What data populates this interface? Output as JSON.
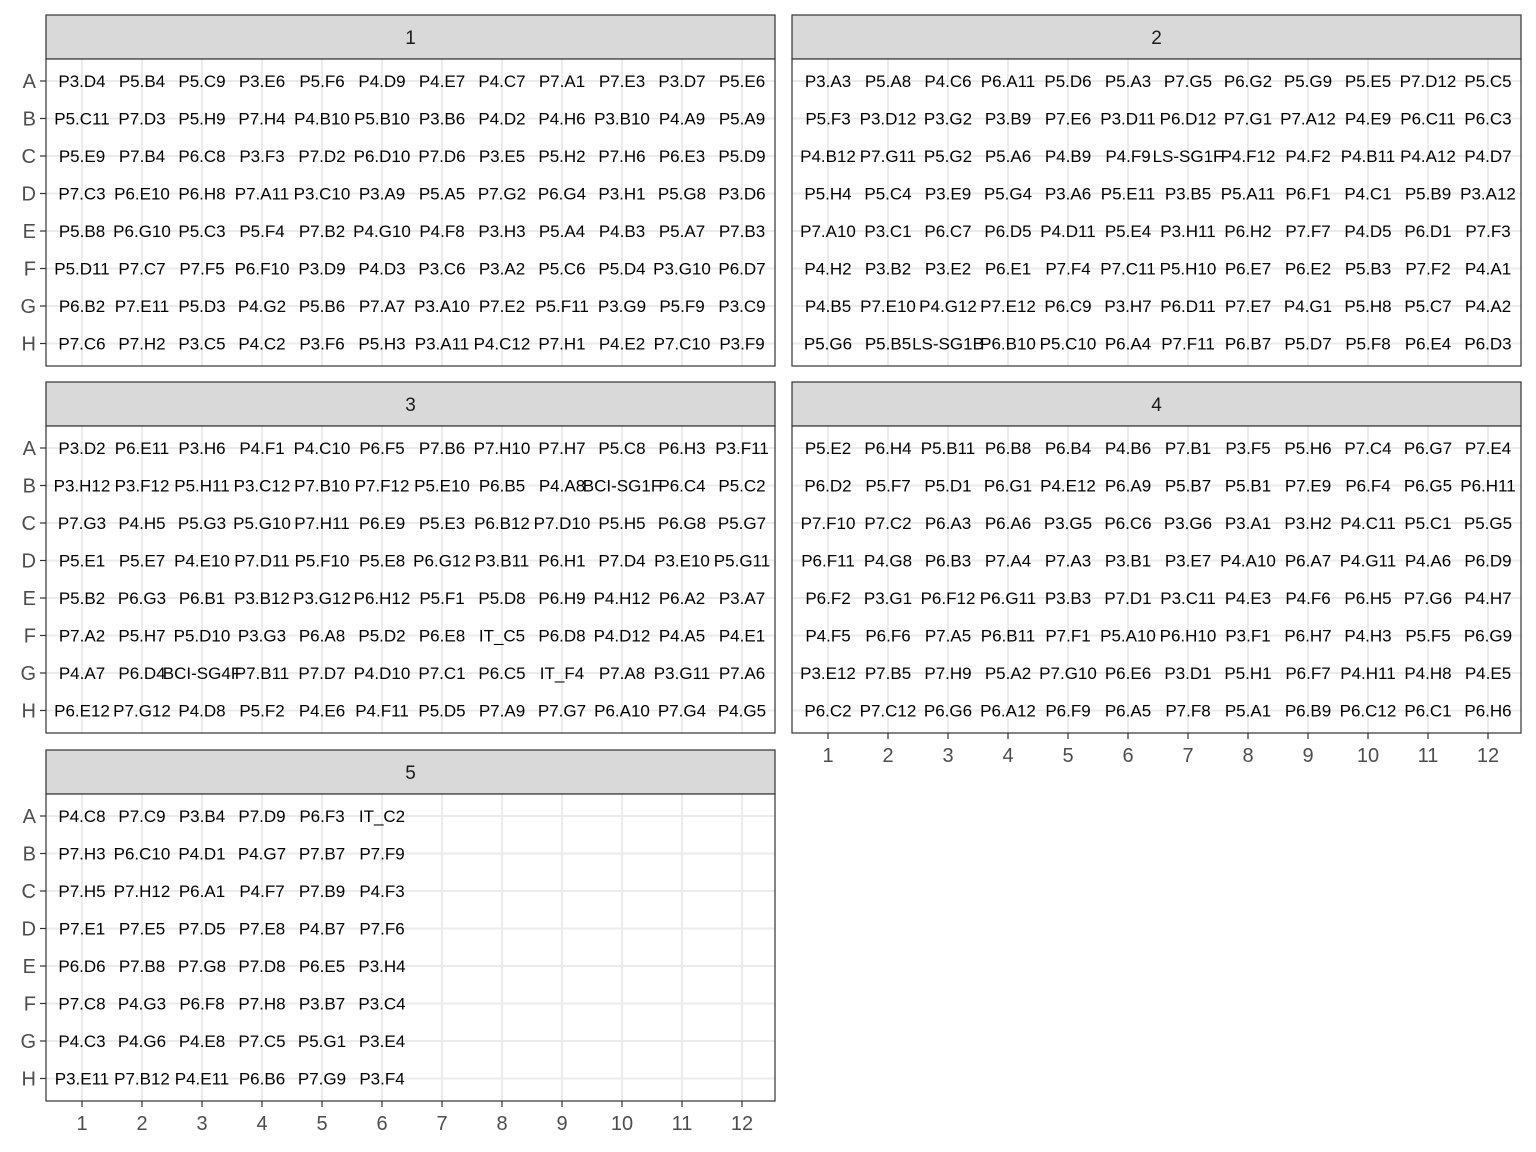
{
  "chart_data": {
    "type": "table",
    "facet_by": "plate",
    "rows": [
      "A",
      "B",
      "C",
      "D",
      "E",
      "F",
      "G",
      "H"
    ],
    "columns": [
      "1",
      "2",
      "3",
      "4",
      "5",
      "6",
      "7",
      "8",
      "9",
      "10",
      "11",
      "12"
    ],
    "grid": true,
    "panels": [
      {
        "title": "1",
        "cells": [
          [
            "P3.D4",
            "P5.B4",
            "P5.C9",
            "P3.E6",
            "P5.F6",
            "P4.D9",
            "P4.E7",
            "P4.C7",
            "P7.A1",
            "P7.E3",
            "P3.D7",
            "P5.E6"
          ],
          [
            "P5.C11",
            "P7.D3",
            "P5.H9",
            "P7.H4",
            "P4.B10",
            "P5.B10",
            "P3.B6",
            "P4.D2",
            "P4.H6",
            "P3.B10",
            "P4.A9",
            "P5.A9"
          ],
          [
            "P5.E9",
            "P7.B4",
            "P6.C8",
            "P3.F3",
            "P7.D2",
            "P6.D10",
            "P7.D6",
            "P3.E5",
            "P5.H2",
            "P7.H6",
            "P6.E3",
            "P5.D9"
          ],
          [
            "P7.C3",
            "P6.E10",
            "P6.H8",
            "P7.A11",
            "P3.C10",
            "P3.A9",
            "P5.A5",
            "P7.G2",
            "P6.G4",
            "P3.H1",
            "P5.G8",
            "P3.D6"
          ],
          [
            "P5.B8",
            "P6.G10",
            "P5.C3",
            "P5.F4",
            "P7.B2",
            "P4.G10",
            "P4.F8",
            "P3.H3",
            "P5.A4",
            "P4.B3",
            "P5.A7",
            "P7.B3"
          ],
          [
            "P5.D11",
            "P7.C7",
            "P7.F5",
            "P6.F10",
            "P3.D9",
            "P4.D3",
            "P3.C6",
            "P3.A2",
            "P5.C6",
            "P5.D4",
            "P3.G10",
            "P6.D7"
          ],
          [
            "P6.B2",
            "P7.E11",
            "P5.D3",
            "P4.G2",
            "P5.B6",
            "P7.A7",
            "P3.A10",
            "P7.E2",
            "P5.F11",
            "P3.G9",
            "P5.F9",
            "P3.C9"
          ],
          [
            "P7.C6",
            "P7.H2",
            "P3.C5",
            "P4.C2",
            "P3.F6",
            "P5.H3",
            "P3.A11",
            "P4.C12",
            "P7.H1",
            "P4.E2",
            "P7.C10",
            "P3.F9"
          ]
        ]
      },
      {
        "title": "2",
        "cells": [
          [
            "P3.A3",
            "P5.A8",
            "P4.C6",
            "P6.A11",
            "P5.D6",
            "P5.A3",
            "P7.G5",
            "P6.G2",
            "P5.G9",
            "P5.E5",
            "P7.D12",
            "P5.C5"
          ],
          [
            "P5.F3",
            "P3.D12",
            "P3.G2",
            "P3.B9",
            "P7.E6",
            "P3.D11",
            "P6.D12",
            "P7.G1",
            "P7.A12",
            "P4.E9",
            "P6.C11",
            "P6.C3"
          ],
          [
            "P4.B12",
            "P7.G11",
            "P5.G2",
            "P5.A6",
            "P4.B9",
            "P4.F9",
            "LS-SG1F",
            "P4.F12",
            "P4.F2",
            "P4.B11",
            "P4.A12",
            "P4.D7"
          ],
          [
            "P5.H4",
            "P5.C4",
            "P3.E9",
            "P5.G4",
            "P3.A6",
            "P5.E11",
            "P3.B5",
            "P5.A11",
            "P6.F1",
            "P4.C1",
            "P5.B9",
            "P3.A12"
          ],
          [
            "P7.A10",
            "P3.C1",
            "P6.C7",
            "P6.D5",
            "P4.D11",
            "P5.E4",
            "P3.H11",
            "P6.H2",
            "P7.F7",
            "P4.D5",
            "P6.D1",
            "P7.F3"
          ],
          [
            "P4.H2",
            "P3.B2",
            "P3.E2",
            "P6.E1",
            "P7.F4",
            "P7.C11",
            "P5.H10",
            "P6.E7",
            "P6.E2",
            "P5.B3",
            "P7.F2",
            "P4.A1"
          ],
          [
            "P4.B5",
            "P7.E10",
            "P4.G12",
            "P7.E12",
            "P6.C9",
            "P3.H7",
            "P6.D11",
            "P7.E7",
            "P4.G1",
            "P5.H8",
            "P5.C7",
            "P4.A2"
          ],
          [
            "P5.G6",
            "P5.B5",
            "LS-SG1B",
            "P6.B10",
            "P5.C10",
            "P6.A4",
            "P7.F11",
            "P6.B7",
            "P5.D7",
            "P5.F8",
            "P6.E4",
            "P6.D3"
          ]
        ]
      },
      {
        "title": "3",
        "cells": [
          [
            "P3.D2",
            "P6.E11",
            "P3.H6",
            "P4.F1",
            "P4.C10",
            "P6.F5",
            "P7.B6",
            "P7.H10",
            "P7.H7",
            "P5.C8",
            "P6.H3",
            "P3.F11"
          ],
          [
            "P3.H12",
            "P3.F12",
            "P5.H11",
            "P3.C12",
            "P7.B10",
            "P7.F12",
            "P5.E10",
            "P6.B5",
            "P4.A8",
            "BCI-SG1F",
            "P6.C4",
            "P5.C2"
          ],
          [
            "P7.G3",
            "P4.H5",
            "P5.G3",
            "P5.G10",
            "P7.H11",
            "P6.E9",
            "P5.E3",
            "P6.B12",
            "P7.D10",
            "P5.H5",
            "P6.G8",
            "P5.G7"
          ],
          [
            "P5.E1",
            "P5.E7",
            "P4.E10",
            "P7.D11",
            "P5.F10",
            "P5.E8",
            "P6.G12",
            "P3.B11",
            "P6.H1",
            "P7.D4",
            "P3.E10",
            "P5.G11"
          ],
          [
            "P5.B2",
            "P6.G3",
            "P6.B1",
            "P3.B12",
            "P3.G12",
            "P6.H12",
            "P5.F1",
            "P5.D8",
            "P6.H9",
            "P4.H12",
            "P6.A2",
            "P3.A7"
          ],
          [
            "P7.A2",
            "P5.H7",
            "P5.D10",
            "P3.G3",
            "P6.A8",
            "P5.D2",
            "P6.E8",
            "IT_C5",
            "P6.D8",
            "P4.D12",
            "P4.A5",
            "P4.E1"
          ],
          [
            "P4.A7",
            "P6.D4",
            "BCI-SG4F",
            "P7.B11",
            "P7.D7",
            "P4.D10",
            "P7.C1",
            "P6.C5",
            "IT_F4",
            "P7.A8",
            "P3.G11",
            "P7.A6"
          ],
          [
            "P6.E12",
            "P7.G12",
            "P4.D8",
            "P5.F2",
            "P4.E6",
            "P4.F11",
            "P5.D5",
            "P7.A9",
            "P7.G7",
            "P6.A10",
            "P7.G4",
            "P4.G5"
          ]
        ]
      },
      {
        "title": "4",
        "cells": [
          [
            "P5.E2",
            "P6.H4",
            "P5.B11",
            "P6.B8",
            "P6.B4",
            "P4.B6",
            "P7.B1",
            "P3.F5",
            "P5.H6",
            "P7.C4",
            "P6.G7",
            "P7.E4"
          ],
          [
            "P6.D2",
            "P5.F7",
            "P5.D1",
            "P6.G1",
            "P4.E12",
            "P6.A9",
            "P5.B7",
            "P5.B1",
            "P7.E9",
            "P6.F4",
            "P6.G5",
            "P6.H11"
          ],
          [
            "P7.F10",
            "P7.C2",
            "P6.A3",
            "P6.A6",
            "P3.G5",
            "P6.C6",
            "P3.G6",
            "P3.A1",
            "P3.H2",
            "P4.C11",
            "P5.C1",
            "P5.G5"
          ],
          [
            "P6.F11",
            "P4.G8",
            "P6.B3",
            "P7.A4",
            "P7.A3",
            "P3.B1",
            "P3.E7",
            "P4.A10",
            "P6.A7",
            "P4.G11",
            "P4.A6",
            "P6.D9"
          ],
          [
            "P6.F2",
            "P3.G1",
            "P6.F12",
            "P6.G11",
            "P3.B3",
            "P7.D1",
            "P3.C11",
            "P4.E3",
            "P4.F6",
            "P6.H5",
            "P7.G6",
            "P4.H7"
          ],
          [
            "P4.F5",
            "P6.F6",
            "P7.A5",
            "P6.B11",
            "P7.F1",
            "P5.A10",
            "P6.H10",
            "P3.F1",
            "P6.H7",
            "P4.H3",
            "P5.F5",
            "P6.G9"
          ],
          [
            "P3.E12",
            "P7.B5",
            "P7.H9",
            "P5.A2",
            "P7.G10",
            "P6.E6",
            "P3.D1",
            "P5.H1",
            "P6.F7",
            "P4.H11",
            "P4.H8",
            "P4.E5"
          ],
          [
            "P6.C2",
            "P7.C12",
            "P6.G6",
            "P6.A12",
            "P6.F9",
            "P6.A5",
            "P7.F8",
            "P5.A1",
            "P6.B9",
            "P6.C12",
            "P6.C1",
            "P6.H6"
          ]
        ]
      },
      {
        "title": "5",
        "cells": [
          [
            "P4.C8",
            "P7.C9",
            "P3.B4",
            "P7.D9",
            "P6.F3",
            "IT_C2"
          ],
          [
            "P7.H3",
            "P6.C10",
            "P4.D1",
            "P4.G7",
            "P7.B7",
            "P7.F9"
          ],
          [
            "P7.H5",
            "P7.H12",
            "P6.A1",
            "P4.F7",
            "P7.B9",
            "P4.F3"
          ],
          [
            "P7.E1",
            "P7.E5",
            "P7.D5",
            "P7.E8",
            "P4.B7",
            "P7.F6"
          ],
          [
            "P6.D6",
            "P7.B8",
            "P7.G8",
            "P7.D8",
            "P6.E5",
            "P3.H4"
          ],
          [
            "P7.C8",
            "P4.G3",
            "P6.F8",
            "P7.H8",
            "P3.B7",
            "P3.C4"
          ],
          [
            "P4.C3",
            "P4.G6",
            "P4.E8",
            "P7.C5",
            "P5.G1",
            "P3.E4"
          ],
          [
            "P3.E11",
            "P7.B12",
            "P4.E11",
            "P6.B6",
            "P7.G9",
            "P3.F4"
          ]
        ]
      }
    ]
  },
  "colors": {
    "strip_fill": "#d9d9d9",
    "frame": "#333333",
    "grid": "#ebebeb",
    "text": "#000000",
    "axis_text": "#4d4d4d"
  }
}
